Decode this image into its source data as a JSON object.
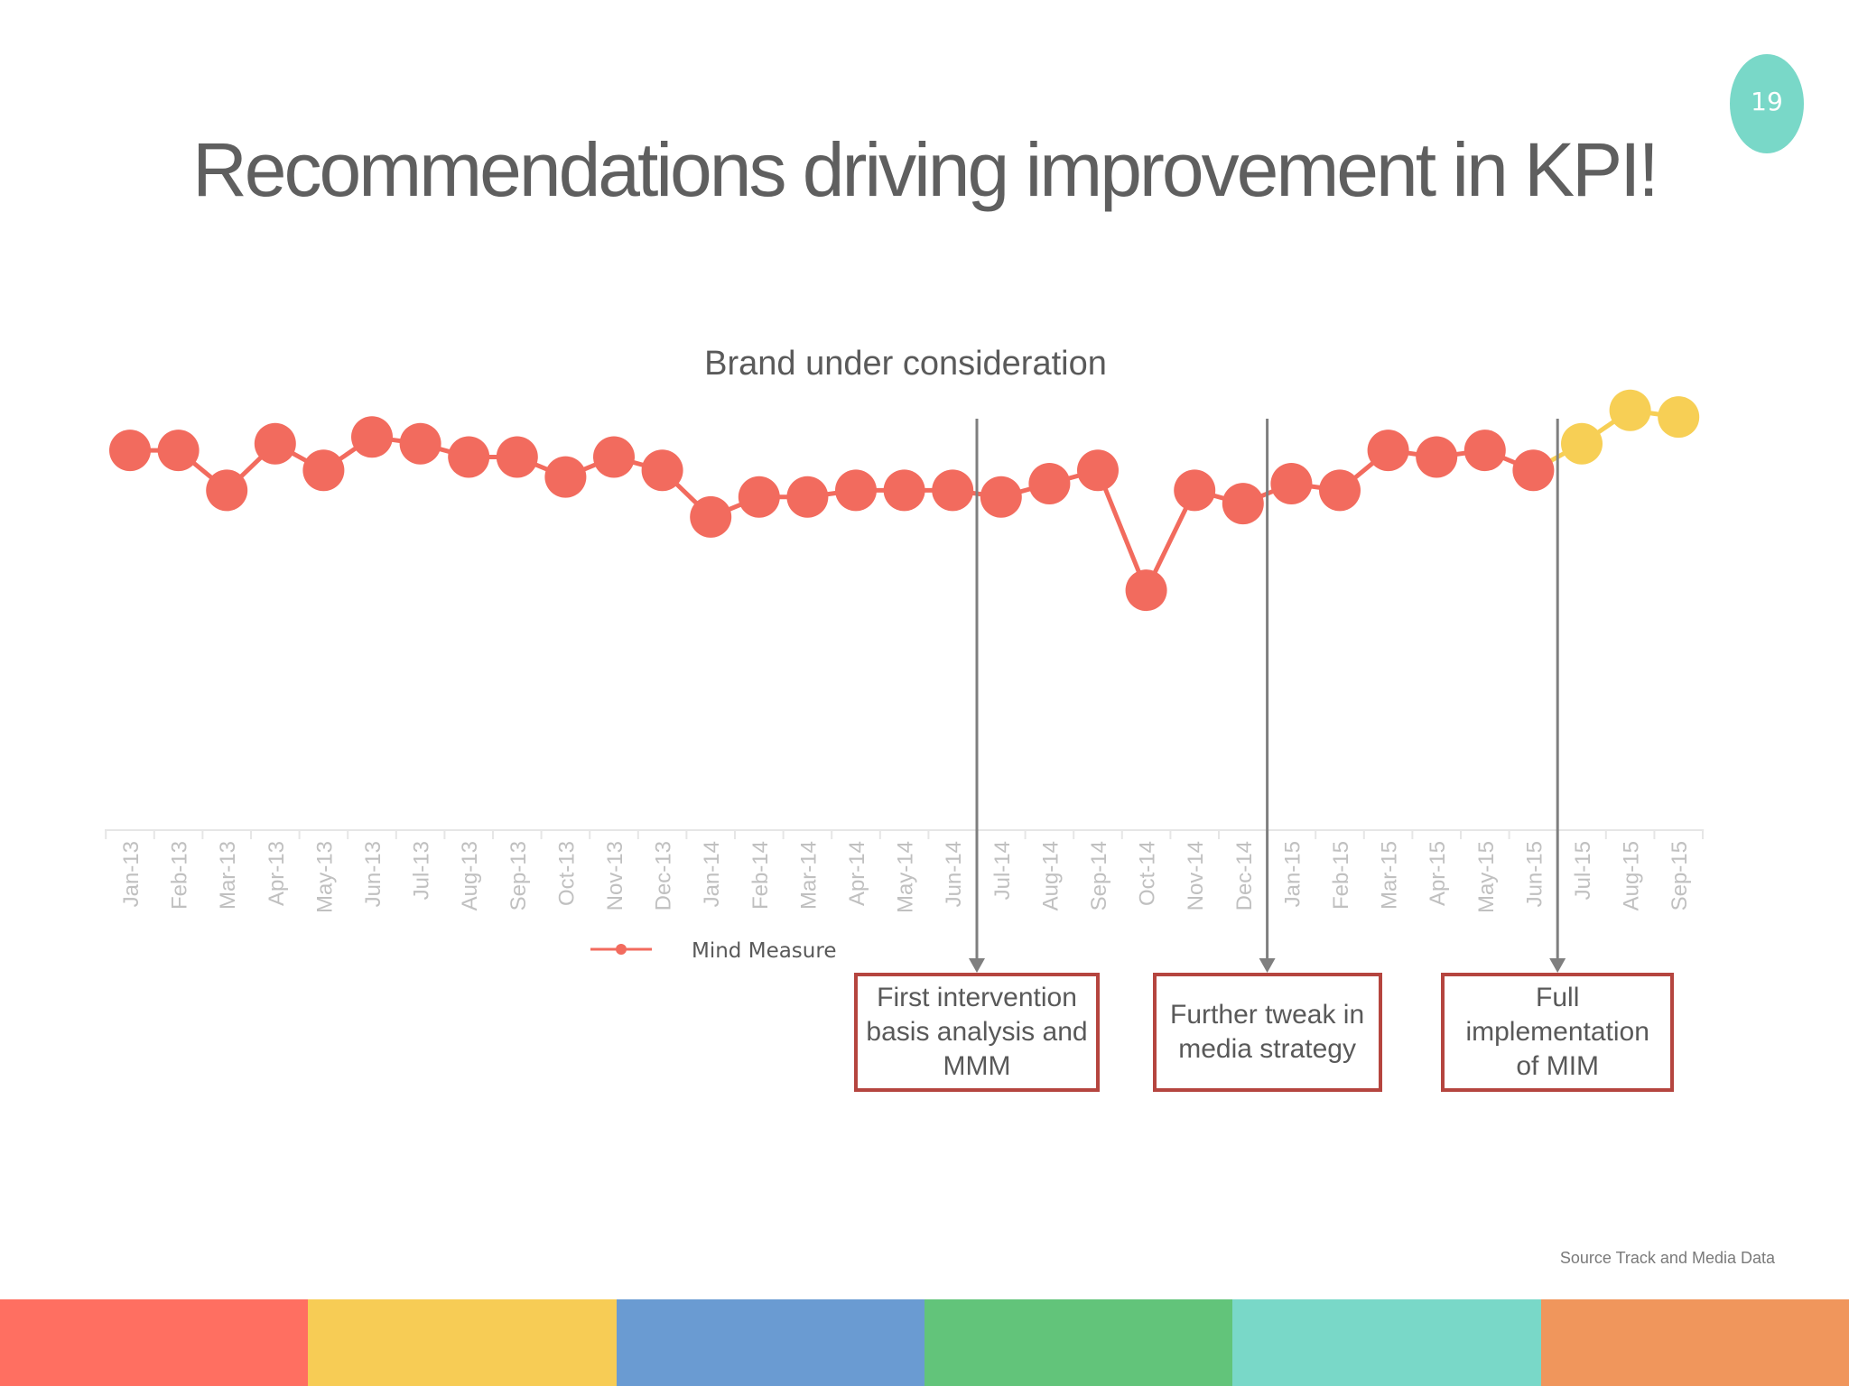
{
  "slide": {
    "page_number": "19",
    "title": "Recommendations driving improvement in KPI!",
    "source_note": "Source Track and Media Data",
    "band_colors": [
      "#ff6f61",
      "#f7cc55",
      "#6a9bd2",
      "#62c47a",
      "#79d8c8",
      "#f0965c"
    ]
  },
  "annotations": [
    {
      "text": "First intervention basis analysis and MMM",
      "at": "Jun-14"
    },
    {
      "text": "Further tweak in media strategy",
      "at": "Dec-14"
    },
    {
      "text": "Full implementation of MIM",
      "at": "Jun-15"
    }
  ],
  "chart_data": {
    "type": "line",
    "title": "Brand under consideration",
    "xlabel": "",
    "ylabel": "",
    "categories": [
      "Jan-13",
      "Feb-13",
      "Mar-13",
      "Apr-13",
      "May-13",
      "Jun-13",
      "Jul-13",
      "Aug-13",
      "Sep-13",
      "Oct-13",
      "Nov-13",
      "Dec-13",
      "Jan-14",
      "Feb-14",
      "Mar-14",
      "Apr-14",
      "May-14",
      "Jun-14",
      "Jul-14",
      "Aug-14",
      "Sep-14",
      "Oct-14",
      "Nov-14",
      "Dec-14",
      "Jan-15",
      "Feb-15",
      "Mar-15",
      "Apr-15",
      "May-15",
      "Jun-15",
      "Jul-15",
      "Aug-15",
      "Sep-15"
    ],
    "series": [
      {
        "name": "Mind Measure",
        "color": "#f26b5e",
        "highlight_color": "#f7cf55",
        "highlight_from_index": 30,
        "values": [
          57,
          57,
          51,
          58,
          54,
          59,
          58,
          56,
          56,
          53,
          56,
          54,
          47,
          50,
          50,
          51,
          51,
          51,
          50,
          52,
          54,
          36,
          51,
          49,
          52,
          51,
          57,
          56,
          57,
          54,
          58,
          63,
          62
        ]
      }
    ],
    "ylim": [
      0,
      65
    ],
    "grid": false,
    "legend_position": "bottom-left"
  }
}
